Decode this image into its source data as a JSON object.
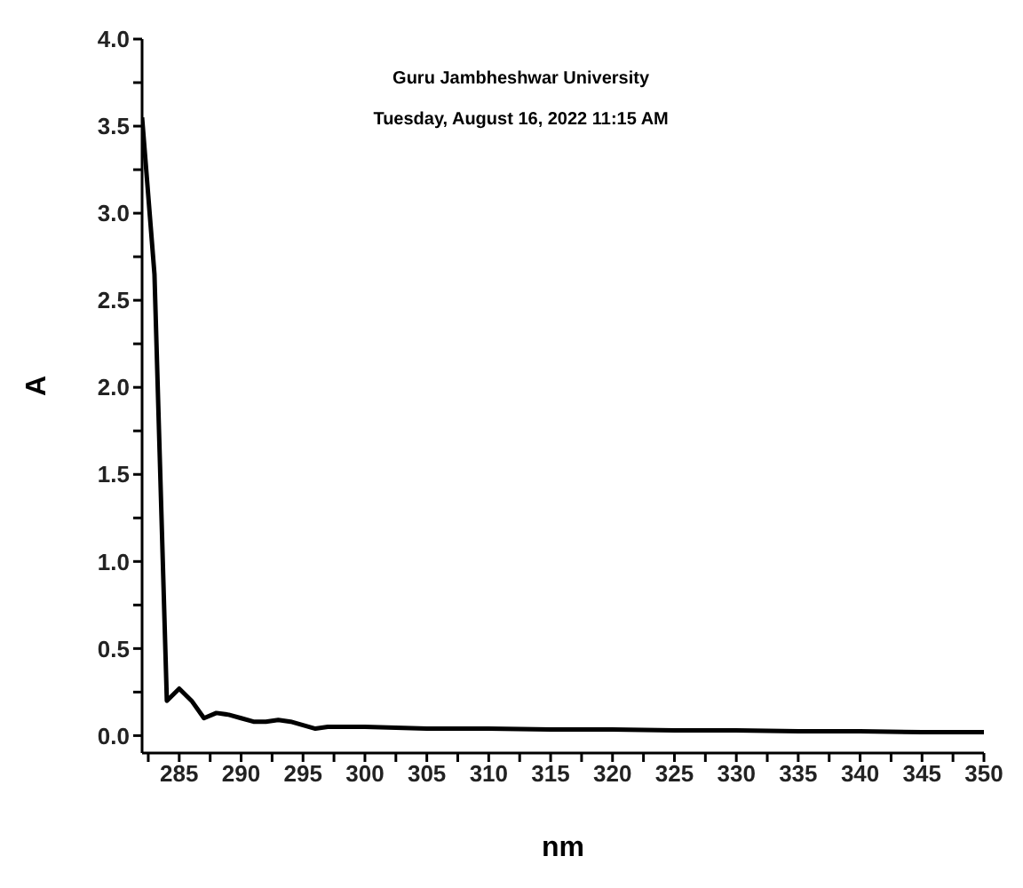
{
  "chart_data": {
    "type": "line",
    "xlabel": "nm",
    "ylabel": "A",
    "annotations": [
      "Guru Jambheshwar University",
      "Tuesday, August 16, 2022 11:15 AM"
    ],
    "x": [
      282,
      283,
      284,
      285,
      286,
      287,
      288,
      289,
      290,
      291,
      292,
      293,
      294,
      295,
      296,
      297,
      300,
      305,
      310,
      315,
      320,
      325,
      330,
      335,
      340,
      345,
      350
    ],
    "series": [
      {
        "color": "#000000",
        "values": [
          3.55,
          2.65,
          0.2,
          0.27,
          0.2,
          0.1,
          0.13,
          0.12,
          0.1,
          0.08,
          0.08,
          0.09,
          0.08,
          0.06,
          0.04,
          0.05,
          0.05,
          0.04,
          0.04,
          0.035,
          0.035,
          0.03,
          0.03,
          0.025,
          0.025,
          0.02,
          0.02
        ]
      }
    ],
    "xlim": [
      282,
      350
    ],
    "xticks": [
      {
        "value": 282.5,
        "label": null
      },
      285,
      {
        "value": 287.5,
        "label": null
      },
      290,
      {
        "value": 292.5,
        "label": null
      },
      295,
      {
        "value": 297.5,
        "label": null
      },
      300,
      {
        "value": 302.5,
        "label": null
      },
      305,
      {
        "value": 307.5,
        "label": null
      },
      310,
      {
        "value": 312.5,
        "label": null
      },
      315,
      {
        "value": 317.5,
        "label": null
      },
      320,
      {
        "value": 322.5,
        "label": null
      },
      325,
      {
        "value": 327.5,
        "label": null
      },
      330,
      {
        "value": 332.5,
        "label": null
      },
      335,
      {
        "value": 337.5,
        "label": null
      },
      340,
      {
        "value": 342.5,
        "label": null
      },
      345,
      {
        "value": 347.5,
        "label": null
      },
      350
    ],
    "ylim": [
      -0.1,
      4.0
    ],
    "yticks": [
      {
        "value": 0,
        "label": "0.0"
      },
      {
        "value": 0.25,
        "label": null
      },
      {
        "value": 0.5,
        "label": "0.5"
      },
      {
        "value": 0.75,
        "label": null
      },
      {
        "value": 1,
        "label": "1.0"
      },
      {
        "value": 1.25,
        "label": null
      },
      {
        "value": 1.5,
        "label": "1.5"
      },
      {
        "value": 1.75,
        "label": null
      },
      {
        "value": 2,
        "label": "2.0"
      },
      {
        "value": 2.25,
        "label": null
      },
      {
        "value": 2.5,
        "label": "2.5"
      },
      {
        "value": 2.75,
        "label": null
      },
      {
        "value": 3,
        "label": "3.0"
      },
      {
        "value": 3.25,
        "label": null
      },
      {
        "value": 3.5,
        "label": "3.5"
      },
      {
        "value": 3.75,
        "label": null
      },
      {
        "value": 4,
        "label": "4.0"
      }
    ],
    "grid": false,
    "legend": false,
    "marker": "none",
    "line_style": "solid"
  }
}
